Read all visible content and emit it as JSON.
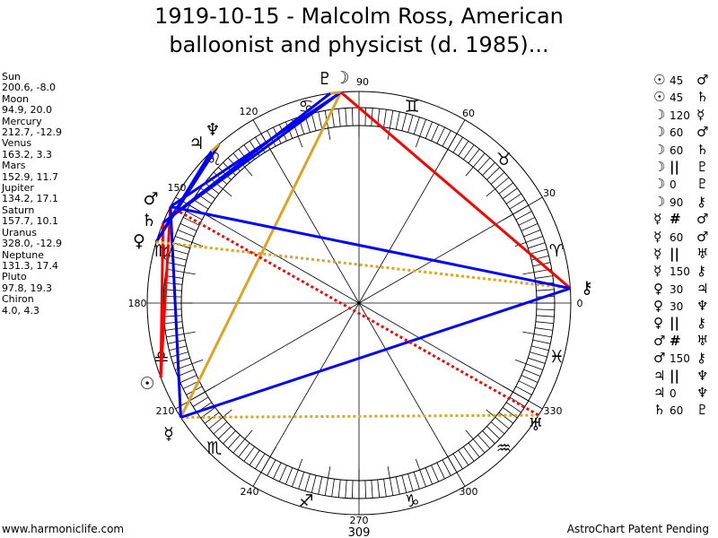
{
  "title": {
    "line1": "1919-10-15 - Malcolm Ross, American",
    "line2": "balloonist and physicist (d. 1985)..."
  },
  "planets": [
    {
      "name": "Sun",
      "glyph": "☉",
      "coords": "200.6, -8.0",
      "lon": 200.6
    },
    {
      "name": "Moon",
      "glyph": "☽",
      "coords": "94.9, 20.0",
      "lon": 94.9
    },
    {
      "name": "Mercury",
      "glyph": "☿",
      "coords": "212.7, -12.9",
      "lon": 212.7
    },
    {
      "name": "Venus",
      "glyph": "♀",
      "coords": "163.2, 3.3",
      "lon": 163.2
    },
    {
      "name": "Mars",
      "glyph": "♂",
      "coords": "152.9, 11.7",
      "lon": 152.9
    },
    {
      "name": "Jupiter",
      "glyph": "♃",
      "coords": "134.2, 17.1",
      "lon": 134.2
    },
    {
      "name": "Saturn",
      "glyph": "♄",
      "coords": "157.7, 10.1",
      "lon": 157.7
    },
    {
      "name": "Uranus",
      "glyph": "♅",
      "coords": "328.0, -12.9",
      "lon": 328.0
    },
    {
      "name": "Neptune",
      "glyph": "♆",
      "coords": "131.3, 17.4",
      "lon": 131.3
    },
    {
      "name": "Pluto",
      "glyph": "♇",
      "coords": "97.8, 19.3",
      "lon": 97.8
    },
    {
      "name": "Chiron",
      "glyph": "⚷",
      "coords": "4.0, 4.3",
      "lon": 4.0
    }
  ],
  "aspects": [
    {
      "p1": "Sun",
      "type": "45",
      "p2": "Mars"
    },
    {
      "p1": "Sun",
      "type": "45",
      "p2": "Saturn"
    },
    {
      "p1": "Moon",
      "type": "120",
      "p2": "Mercury"
    },
    {
      "p1": "Moon",
      "type": "60",
      "p2": "Mars"
    },
    {
      "p1": "Moon",
      "type": "60",
      "p2": "Saturn"
    },
    {
      "p1": "Moon",
      "type": "||",
      "p2": "Pluto"
    },
    {
      "p1": "Moon",
      "type": "0",
      "p2": "Pluto"
    },
    {
      "p1": "Moon",
      "type": "90",
      "p2": "Chiron"
    },
    {
      "p1": "Mercury",
      "type": "#",
      "p2": "Mars"
    },
    {
      "p1": "Mercury",
      "type": "60",
      "p2": "Mars"
    },
    {
      "p1": "Mercury",
      "type": "||",
      "p2": "Uranus"
    },
    {
      "p1": "Mercury",
      "type": "150",
      "p2": "Chiron"
    },
    {
      "p1": "Venus",
      "type": "30",
      "p2": "Jupiter"
    },
    {
      "p1": "Venus",
      "type": "30",
      "p2": "Neptune"
    },
    {
      "p1": "Venus",
      "type": "||",
      "p2": "Chiron"
    },
    {
      "p1": "Mars",
      "type": "#",
      "p2": "Uranus"
    },
    {
      "p1": "Mars",
      "type": "150",
      "p2": "Chiron"
    },
    {
      "p1": "Jupiter",
      "type": "||",
      "p2": "Neptune"
    },
    {
      "p1": "Jupiter",
      "type": "0",
      "p2": "Neptune"
    },
    {
      "p1": "Saturn",
      "type": "60",
      "p2": "Pluto"
    }
  ],
  "aspect_colors": {
    "0": "#daa520",
    "120": "#daa520",
    "||": "#daa520",
    "30": "#0000ff",
    "60": "#0000ff",
    "150": "#0000ff",
    "45": "#ff0000",
    "90": "#ff0000",
    "#": "#ff0000"
  },
  "zodiac": [
    "♈",
    "♉",
    "♊",
    "♋",
    "♌",
    "♍",
    "♎",
    "♏",
    "♐",
    "♑",
    "♒",
    "♓"
  ],
  "degree_labels": [
    "0",
    "30",
    "60",
    "90",
    "120",
    "150",
    "180",
    "210",
    "240",
    "270",
    "300",
    "330"
  ],
  "extra_label": "309",
  "footer": {
    "left": "www.harmoniclife.com",
    "right": "AstroChart Patent Pending"
  }
}
